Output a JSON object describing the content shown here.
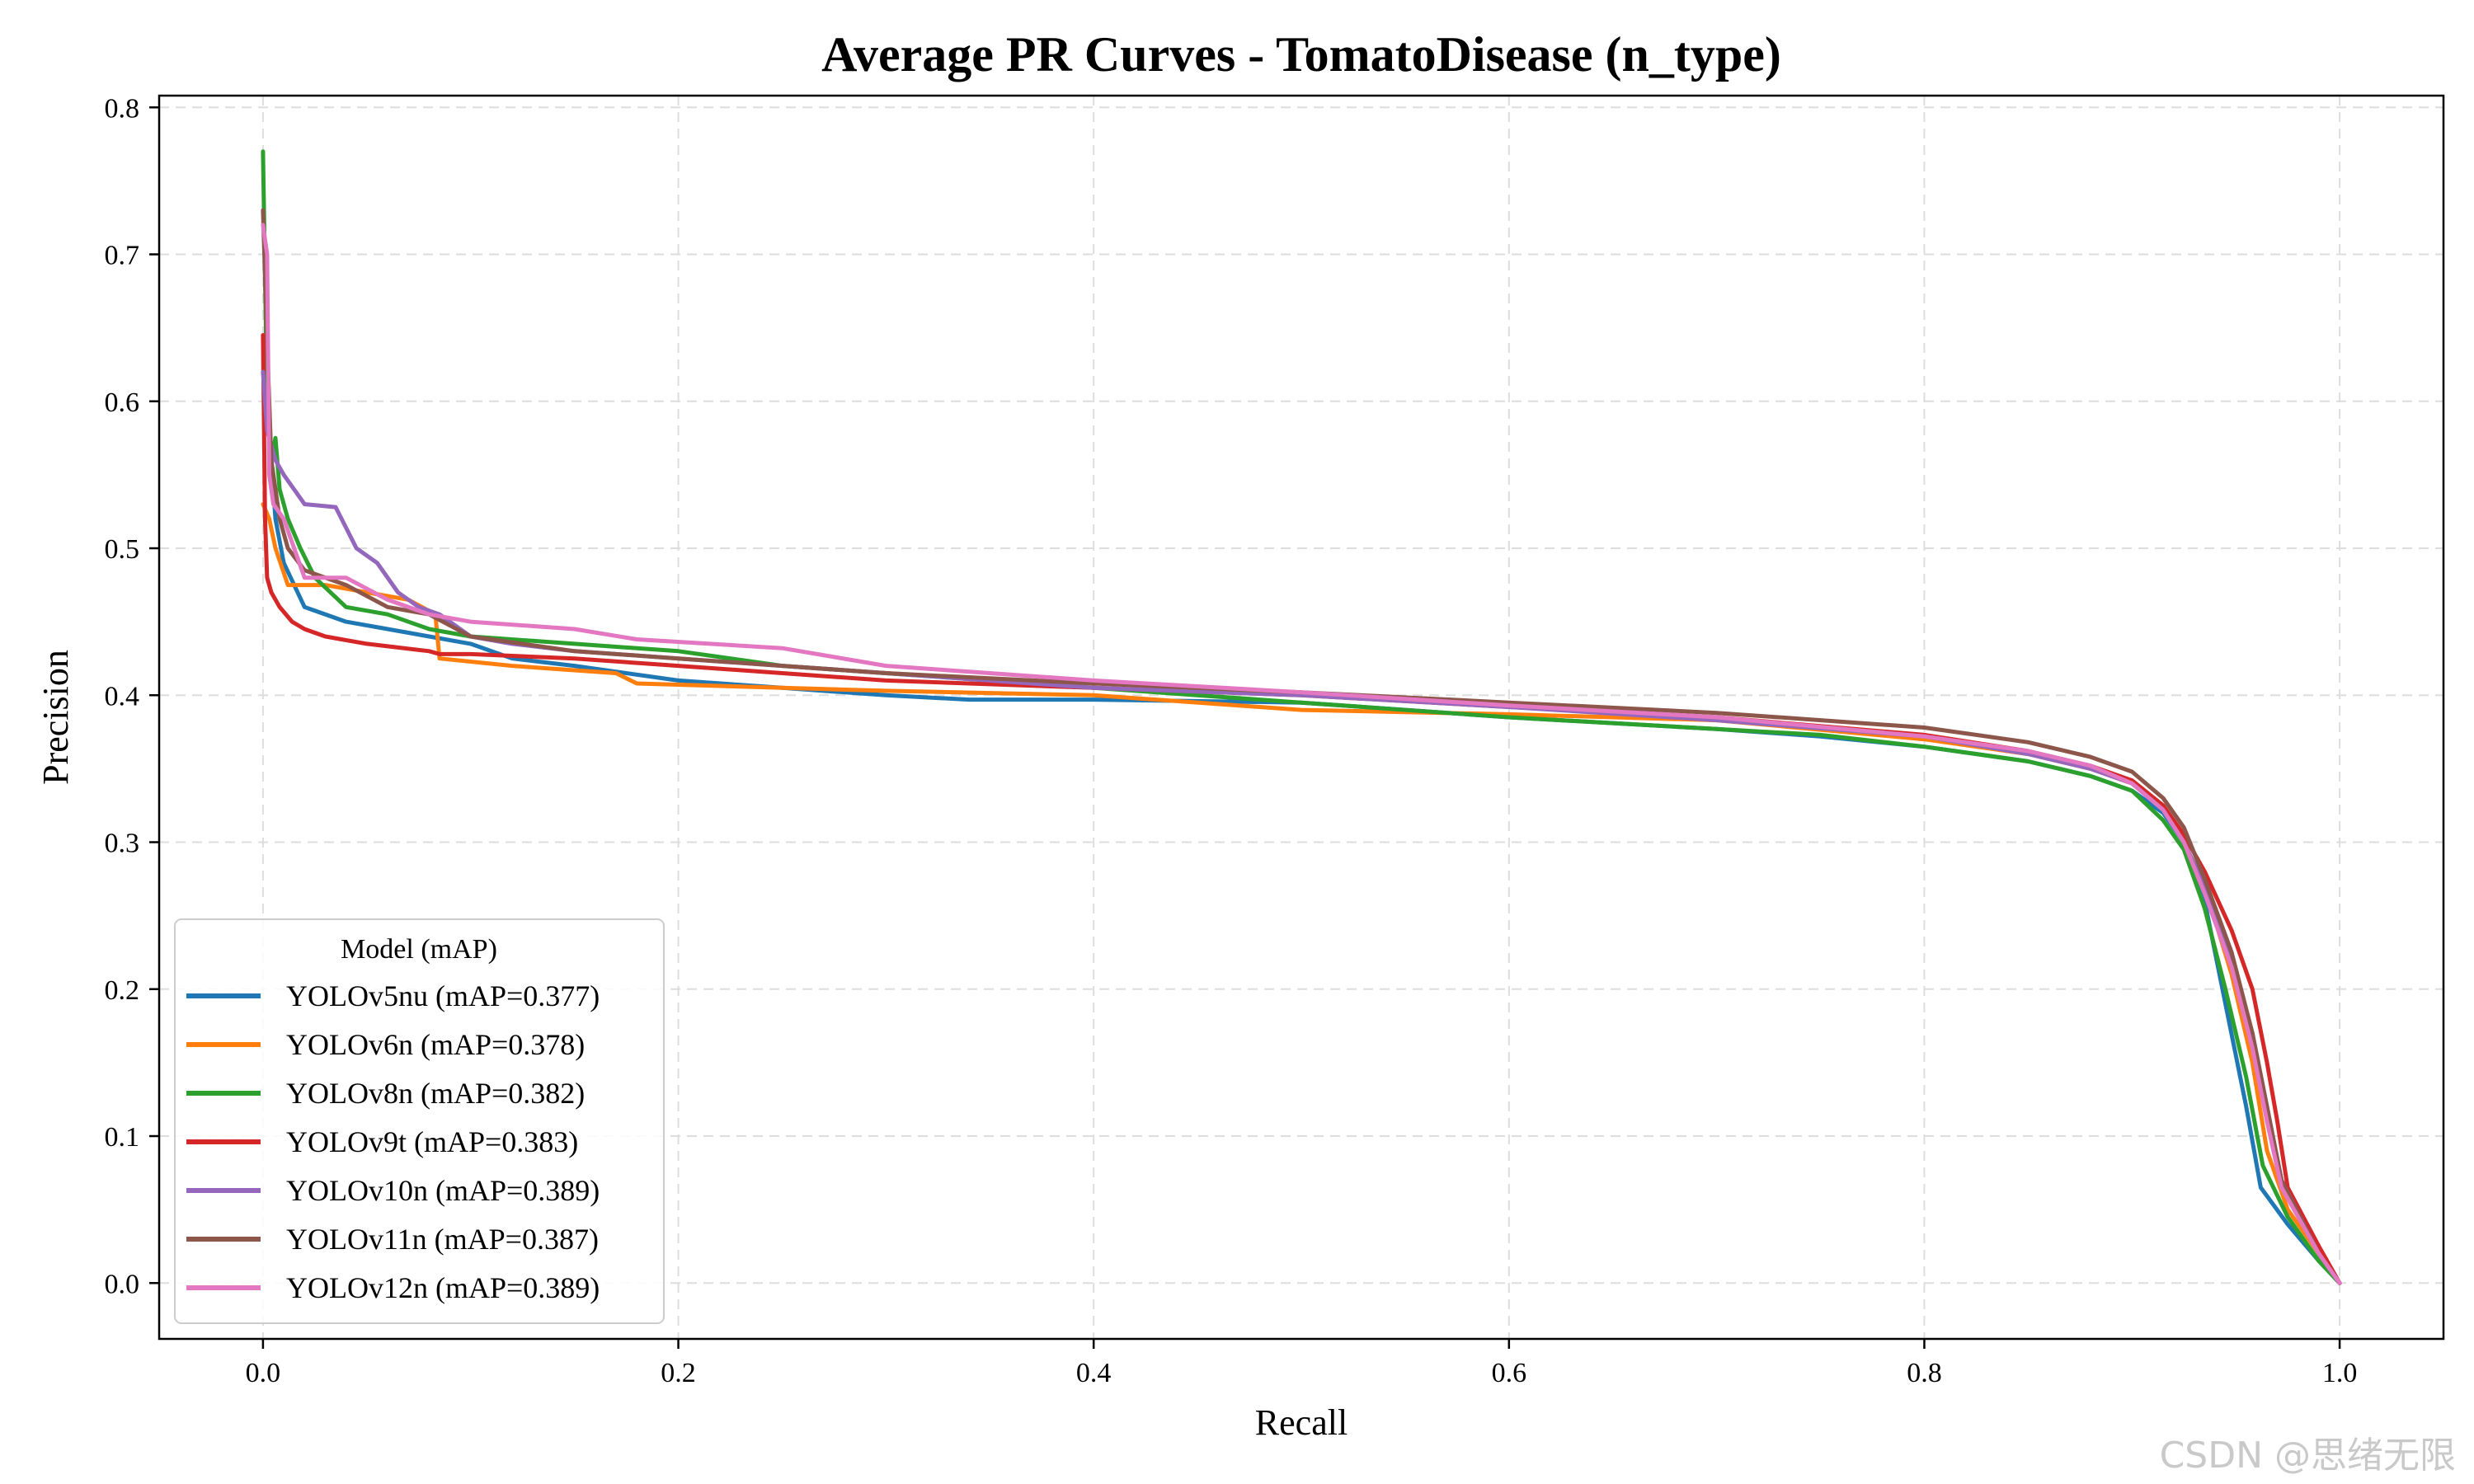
{
  "chart_data": {
    "type": "line",
    "title": "Average PR Curves - TomatoDisease (n_type)",
    "xlabel": "Recall",
    "ylabel": "Precision",
    "xlim": [
      -0.05,
      1.05
    ],
    "ylim": [
      -0.038,
      0.808
    ],
    "xticks": [
      0.0,
      0.2,
      0.4,
      0.6,
      0.8,
      1.0
    ],
    "xtick_labels": [
      "0.0",
      "0.2",
      "0.4",
      "0.6",
      "0.8",
      "1.0"
    ],
    "yticks": [
      0.0,
      0.1,
      0.2,
      0.3,
      0.4,
      0.5,
      0.6,
      0.7,
      0.8
    ],
    "ytick_labels": [
      "0.0",
      "0.1",
      "0.2",
      "0.3",
      "0.4",
      "0.5",
      "0.6",
      "0.7",
      "0.8"
    ],
    "grid": true,
    "legend": {
      "title": "Model (mAP)",
      "placement": "lower-left"
    },
    "series": [
      {
        "name": "YOLOv5nu (mAP=0.377)",
        "color": "#1f77b4",
        "points": [
          [
            0,
            0.62
          ],
          [
            0.003,
            0.58
          ],
          [
            0.006,
            0.52
          ],
          [
            0.01,
            0.49
          ],
          [
            0.02,
            0.46
          ],
          [
            0.04,
            0.45
          ],
          [
            0.06,
            0.445
          ],
          [
            0.08,
            0.44
          ],
          [
            0.1,
            0.435
          ],
          [
            0.12,
            0.425
          ],
          [
            0.15,
            0.42
          ],
          [
            0.2,
            0.41
          ],
          [
            0.25,
            0.405
          ],
          [
            0.3,
            0.4
          ],
          [
            0.34,
            0.397
          ],
          [
            0.4,
            0.397
          ],
          [
            0.5,
            0.395
          ],
          [
            0.6,
            0.385
          ],
          [
            0.7,
            0.377
          ],
          [
            0.75,
            0.372
          ],
          [
            0.8,
            0.365
          ],
          [
            0.85,
            0.355
          ],
          [
            0.88,
            0.345
          ],
          [
            0.9,
            0.335
          ],
          [
            0.915,
            0.32
          ],
          [
            0.925,
            0.3
          ],
          [
            0.935,
            0.26
          ],
          [
            0.945,
            0.19
          ],
          [
            0.955,
            0.12
          ],
          [
            0.962,
            0.065
          ],
          [
            0.975,
            0.04
          ],
          [
            0.99,
            0.015
          ],
          [
            1.0,
            0.0
          ]
        ]
      },
      {
        "name": "YOLOv6n (mAP=0.378)",
        "color": "#ff7f0e",
        "points": [
          [
            0,
            0.53
          ],
          [
            0.003,
            0.52
          ],
          [
            0.006,
            0.5
          ],
          [
            0.012,
            0.475
          ],
          [
            0.03,
            0.475
          ],
          [
            0.05,
            0.47
          ],
          [
            0.07,
            0.465
          ],
          [
            0.083,
            0.455
          ],
          [
            0.085,
            0.425
          ],
          [
            0.12,
            0.42
          ],
          [
            0.14,
            0.418
          ],
          [
            0.17,
            0.415
          ],
          [
            0.18,
            0.408
          ],
          [
            0.25,
            0.405
          ],
          [
            0.3,
            0.403
          ],
          [
            0.4,
            0.4
          ],
          [
            0.5,
            0.39
          ],
          [
            0.6,
            0.387
          ],
          [
            0.7,
            0.383
          ],
          [
            0.8,
            0.37
          ],
          [
            0.85,
            0.36
          ],
          [
            0.88,
            0.35
          ],
          [
            0.9,
            0.34
          ],
          [
            0.915,
            0.325
          ],
          [
            0.925,
            0.3
          ],
          [
            0.935,
            0.27
          ],
          [
            0.948,
            0.21
          ],
          [
            0.958,
            0.15
          ],
          [
            0.965,
            0.09
          ],
          [
            0.975,
            0.05
          ],
          [
            0.99,
            0.02
          ],
          [
            1.0,
            0.0
          ]
        ]
      },
      {
        "name": "YOLOv8n (mAP=0.382)",
        "color": "#2ca02c",
        "points": [
          [
            0,
            0.77
          ],
          [
            0.002,
            0.6
          ],
          [
            0.004,
            0.56
          ],
          [
            0.006,
            0.575
          ],
          [
            0.008,
            0.54
          ],
          [
            0.012,
            0.52
          ],
          [
            0.018,
            0.5
          ],
          [
            0.025,
            0.48
          ],
          [
            0.04,
            0.46
          ],
          [
            0.06,
            0.455
          ],
          [
            0.08,
            0.445
          ],
          [
            0.1,
            0.44
          ],
          [
            0.15,
            0.435
          ],
          [
            0.2,
            0.43
          ],
          [
            0.25,
            0.42
          ],
          [
            0.3,
            0.415
          ],
          [
            0.4,
            0.405
          ],
          [
            0.5,
            0.395
          ],
          [
            0.6,
            0.385
          ],
          [
            0.7,
            0.377
          ],
          [
            0.75,
            0.373
          ],
          [
            0.8,
            0.365
          ],
          [
            0.85,
            0.355
          ],
          [
            0.88,
            0.345
          ],
          [
            0.9,
            0.335
          ],
          [
            0.915,
            0.315
          ],
          [
            0.925,
            0.295
          ],
          [
            0.935,
            0.255
          ],
          [
            0.945,
            0.2
          ],
          [
            0.955,
            0.14
          ],
          [
            0.963,
            0.08
          ],
          [
            0.975,
            0.045
          ],
          [
            0.99,
            0.015
          ],
          [
            1.0,
            0.0
          ]
        ]
      },
      {
        "name": "YOLOv9t (mAP=0.383)",
        "color": "#d62728",
        "points": [
          [
            0,
            0.645
          ],
          [
            0.001,
            0.52
          ],
          [
            0.002,
            0.48
          ],
          [
            0.004,
            0.47
          ],
          [
            0.008,
            0.46
          ],
          [
            0.014,
            0.45
          ],
          [
            0.02,
            0.445
          ],
          [
            0.03,
            0.44
          ],
          [
            0.05,
            0.435
          ],
          [
            0.08,
            0.43
          ],
          [
            0.085,
            0.428
          ],
          [
            0.1,
            0.428
          ],
          [
            0.15,
            0.425
          ],
          [
            0.2,
            0.42
          ],
          [
            0.25,
            0.415
          ],
          [
            0.3,
            0.41
          ],
          [
            0.4,
            0.405
          ],
          [
            0.5,
            0.4
          ],
          [
            0.6,
            0.392
          ],
          [
            0.7,
            0.385
          ],
          [
            0.8,
            0.373
          ],
          [
            0.85,
            0.362
          ],
          [
            0.88,
            0.352
          ],
          [
            0.9,
            0.342
          ],
          [
            0.915,
            0.325
          ],
          [
            0.925,
            0.305
          ],
          [
            0.935,
            0.28
          ],
          [
            0.948,
            0.24
          ],
          [
            0.958,
            0.2
          ],
          [
            0.965,
            0.15
          ],
          [
            0.97,
            0.11
          ],
          [
            0.975,
            0.065
          ],
          [
            0.99,
            0.025
          ],
          [
            1.0,
            0.0
          ]
        ]
      },
      {
        "name": "YOLOv10n (mAP=0.389)",
        "color": "#9467bd",
        "points": [
          [
            0,
            0.62
          ],
          [
            0.002,
            0.58
          ],
          [
            0.006,
            0.56
          ],
          [
            0.01,
            0.55
          ],
          [
            0.015,
            0.54
          ],
          [
            0.02,
            0.53
          ],
          [
            0.035,
            0.528
          ],
          [
            0.045,
            0.5
          ],
          [
            0.055,
            0.49
          ],
          [
            0.065,
            0.47
          ],
          [
            0.075,
            0.46
          ],
          [
            0.085,
            0.455
          ],
          [
            0.1,
            0.44
          ],
          [
            0.12,
            0.435
          ],
          [
            0.15,
            0.43
          ],
          [
            0.2,
            0.425
          ],
          [
            0.25,
            0.42
          ],
          [
            0.3,
            0.415
          ],
          [
            0.4,
            0.405
          ],
          [
            0.5,
            0.4
          ],
          [
            0.6,
            0.392
          ],
          [
            0.7,
            0.383
          ],
          [
            0.8,
            0.372
          ],
          [
            0.85,
            0.36
          ],
          [
            0.88,
            0.35
          ],
          [
            0.9,
            0.34
          ],
          [
            0.915,
            0.322
          ],
          [
            0.925,
            0.3
          ],
          [
            0.935,
            0.27
          ],
          [
            0.948,
            0.22
          ],
          [
            0.958,
            0.17
          ],
          [
            0.965,
            0.12
          ],
          [
            0.972,
            0.07
          ],
          [
            0.99,
            0.02
          ],
          [
            1.0,
            0.0
          ]
        ]
      },
      {
        "name": "YOLOv11n (mAP=0.387)",
        "color": "#8c564b",
        "points": [
          [
            0,
            0.73
          ],
          [
            0.002,
            0.64
          ],
          [
            0.004,
            0.56
          ],
          [
            0.008,
            0.52
          ],
          [
            0.012,
            0.5
          ],
          [
            0.02,
            0.485
          ],
          [
            0.04,
            0.475
          ],
          [
            0.06,
            0.46
          ],
          [
            0.08,
            0.455
          ],
          [
            0.1,
            0.44
          ],
          [
            0.15,
            0.43
          ],
          [
            0.2,
            0.425
          ],
          [
            0.25,
            0.42
          ],
          [
            0.3,
            0.415
          ],
          [
            0.4,
            0.408
          ],
          [
            0.5,
            0.402
          ],
          [
            0.6,
            0.395
          ],
          [
            0.7,
            0.388
          ],
          [
            0.8,
            0.378
          ],
          [
            0.85,
            0.368
          ],
          [
            0.88,
            0.358
          ],
          [
            0.9,
            0.348
          ],
          [
            0.915,
            0.33
          ],
          [
            0.925,
            0.31
          ],
          [
            0.935,
            0.275
          ],
          [
            0.948,
            0.225
          ],
          [
            0.958,
            0.17
          ],
          [
            0.965,
            0.12
          ],
          [
            0.972,
            0.07
          ],
          [
            0.99,
            0.02
          ],
          [
            1.0,
            0.0
          ]
        ]
      },
      {
        "name": "YOLOv12n (mAP=0.389)",
        "color": "#e377c2",
        "points": [
          [
            0,
            0.72
          ],
          [
            0.002,
            0.7
          ],
          [
            0.003,
            0.55
          ],
          [
            0.005,
            0.53
          ],
          [
            0.01,
            0.52
          ],
          [
            0.02,
            0.48
          ],
          [
            0.04,
            0.48
          ],
          [
            0.06,
            0.465
          ],
          [
            0.08,
            0.455
          ],
          [
            0.1,
            0.45
          ],
          [
            0.15,
            0.445
          ],
          [
            0.18,
            0.438
          ],
          [
            0.25,
            0.432
          ],
          [
            0.3,
            0.42
          ],
          [
            0.35,
            0.415
          ],
          [
            0.4,
            0.41
          ],
          [
            0.5,
            0.402
          ],
          [
            0.6,
            0.393
          ],
          [
            0.7,
            0.385
          ],
          [
            0.8,
            0.372
          ],
          [
            0.85,
            0.362
          ],
          [
            0.88,
            0.352
          ],
          [
            0.9,
            0.34
          ],
          [
            0.915,
            0.322
          ],
          [
            0.925,
            0.3
          ],
          [
            0.935,
            0.265
          ],
          [
            0.948,
            0.215
          ],
          [
            0.958,
            0.16
          ],
          [
            0.965,
            0.11
          ],
          [
            0.972,
            0.065
          ],
          [
            0.99,
            0.02
          ],
          [
            1.0,
            0.0
          ]
        ]
      }
    ]
  },
  "watermark": "CSDN @思绪无限"
}
